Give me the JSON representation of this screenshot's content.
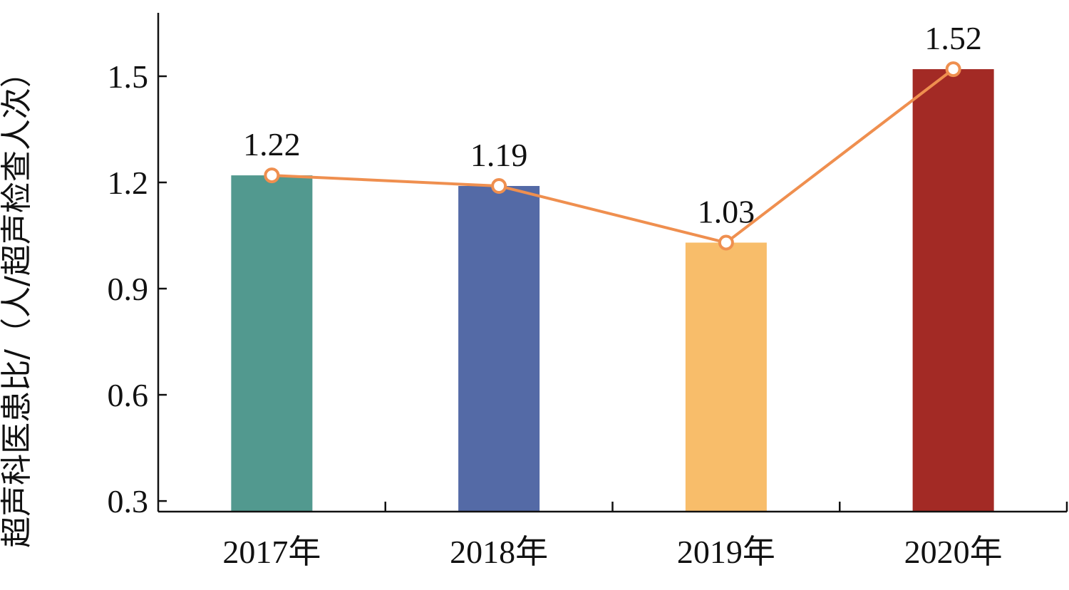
{
  "chart_data": {
    "type": "bar",
    "title": "",
    "xlabel": "",
    "ylabel": "超声科医患比/（人/超声检查人次）",
    "categories": [
      "2017年",
      "2018年",
      "2019年",
      "2020年"
    ],
    "values": [
      1.22,
      1.19,
      1.03,
      1.52
    ],
    "data_labels": [
      "1.22",
      "1.19",
      "1.03",
      "1.52"
    ],
    "bar_colors": [
      "#52998f",
      "#546aa6",
      "#f8bd6a",
      "#a32a25"
    ],
    "line_overlay": {
      "values": [
        1.22,
        1.19,
        1.03,
        1.52
      ],
      "color": "#ef8f4f"
    },
    "ylim": [
      0.27,
      1.5
    ],
    "yticks": [
      0.3,
      0.6,
      0.9,
      1.2,
      1.5
    ],
    "ytick_labels": [
      "0.3",
      "0.6",
      "0.9",
      "1.2",
      "1.5"
    ],
    "grid": false,
    "legend": "none"
  }
}
